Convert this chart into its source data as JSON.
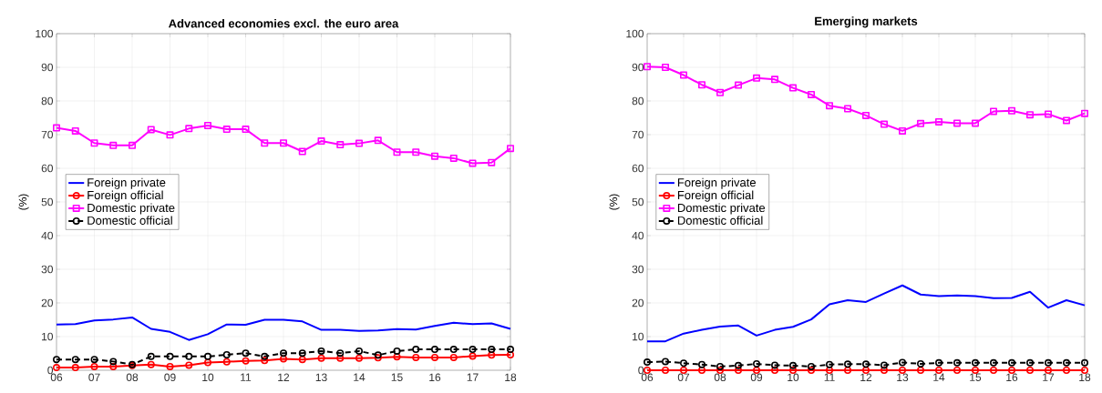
{
  "chart_data": [
    {
      "type": "line",
      "title": "Advanced economies excl. the euro area",
      "ylabel": "(%)",
      "x": [
        6,
        6.5,
        7,
        7.5,
        8,
        8.5,
        9,
        9.5,
        10,
        10.5,
        11,
        11.5,
        12,
        12.5,
        13,
        13.5,
        14,
        14.5,
        15,
        15.5,
        16,
        16.5,
        17,
        17.5,
        18
      ],
      "xlim": [
        6,
        18
      ],
      "ylim": [
        0,
        100
      ],
      "xticks": [
        {
          "value": 6,
          "label": "06"
        },
        {
          "value": 7,
          "label": "07"
        },
        {
          "value": 8,
          "label": "08"
        },
        {
          "value": 9,
          "label": "09"
        },
        {
          "value": 10,
          "label": "10"
        },
        {
          "value": 11,
          "label": "11"
        },
        {
          "value": 12,
          "label": "12"
        },
        {
          "value": 13,
          "label": "13"
        },
        {
          "value": 14,
          "label": "14"
        },
        {
          "value": 15,
          "label": "15"
        },
        {
          "value": 16,
          "label": "16"
        },
        {
          "value": 17,
          "label": "17"
        },
        {
          "value": 18,
          "label": "18"
        }
      ],
      "yticks": [
        0,
        10,
        20,
        30,
        40,
        50,
        60,
        70,
        80,
        90,
        100
      ],
      "grid": true,
      "legend": "left",
      "series": [
        {
          "name": "Foreign private",
          "color": "#0000ff",
          "marker": "none",
          "line_style": "solid",
          "values": [
            13.6,
            13.7,
            14.8,
            15.1,
            15.7,
            12.3,
            11.4,
            9,
            10.7,
            13.6,
            13.5,
            15,
            15,
            14.5,
            12,
            12,
            11.7,
            11.8,
            12.2,
            12.1,
            13.2,
            14.1,
            13.7,
            13.9,
            12.3
          ]
        },
        {
          "name": "Foreign official",
          "color": "#ff0000",
          "marker": "circle",
          "line_style": "solid",
          "values": [
            0.8,
            0.8,
            1.1,
            1.1,
            1.4,
            1.7,
            1.1,
            1.5,
            2.3,
            2.5,
            2.8,
            2.9,
            3.4,
            3.2,
            3.6,
            3.6,
            3.6,
            3.7,
            4,
            3.8,
            3.8,
            3.8,
            4.2,
            4.5,
            4.6
          ]
        },
        {
          "name": "Domestic private",
          "color": "#ff00ff",
          "marker": "square",
          "line_style": "solid",
          "values": [
            72,
            71.1,
            67.5,
            66.8,
            66.8,
            71.5,
            69.9,
            71.8,
            72.7,
            71.6,
            71.6,
            67.5,
            67.5,
            65,
            68.1,
            67,
            67.4,
            68.3,
            64.8,
            64.8,
            63.6,
            63,
            61.5,
            61.7,
            65.9
          ]
        },
        {
          "name": "Domestic official",
          "color": "#000000",
          "marker": "circle",
          "line_style": "dashed",
          "values": [
            3.2,
            3.2,
            3.2,
            2.6,
            1.7,
            4.1,
            4.1,
            4.1,
            4.1,
            4.6,
            5.1,
            4.1,
            5.1,
            5.1,
            5.7,
            5.1,
            5.7,
            4.5,
            5.7,
            6.2,
            6.2,
            6.2,
            6.2,
            6.2,
            6.2
          ]
        }
      ]
    },
    {
      "type": "line",
      "title": "Emerging markets",
      "ylabel": "(%)",
      "x": [
        6,
        6.5,
        7,
        7.5,
        8,
        8.5,
        9,
        9.5,
        10,
        10.5,
        11,
        11.5,
        12,
        12.5,
        13,
        13.5,
        14,
        14.5,
        15,
        15.5,
        16,
        16.5,
        17,
        17.5,
        18
      ],
      "xlim": [
        6,
        18
      ],
      "ylim": [
        0,
        100
      ],
      "xticks": [
        {
          "value": 6,
          "label": "06"
        },
        {
          "value": 7,
          "label": "07"
        },
        {
          "value": 8,
          "label": "08"
        },
        {
          "value": 9,
          "label": "09"
        },
        {
          "value": 10,
          "label": "10"
        },
        {
          "value": 11,
          "label": "11"
        },
        {
          "value": 12,
          "label": "12"
        },
        {
          "value": 13,
          "label": "13"
        },
        {
          "value": 14,
          "label": "14"
        },
        {
          "value": 15,
          "label": "15"
        },
        {
          "value": 16,
          "label": "16"
        },
        {
          "value": 17,
          "label": "17"
        },
        {
          "value": 18,
          "label": "18"
        }
      ],
      "yticks": [
        0,
        10,
        20,
        30,
        40,
        50,
        60,
        70,
        80,
        90,
        100
      ],
      "grid": true,
      "legend": "left",
      "series": [
        {
          "name": "Foreign private",
          "color": "#0000ff",
          "marker": "none",
          "line_style": "solid",
          "values": [
            8.6,
            8.6,
            10.9,
            12,
            13,
            13.3,
            10.3,
            12,
            12.9,
            15.1,
            19.6,
            20.8,
            20.3,
            22.8,
            25.2,
            22.5,
            22,
            22.2,
            22,
            21.4,
            21.5,
            23.3,
            18.6,
            20.8,
            19.3
          ]
        },
        {
          "name": "Foreign official",
          "color": "#ff0000",
          "marker": "circle",
          "line_style": "solid",
          "values": [
            0,
            0,
            0,
            0,
            0,
            0,
            0,
            0,
            0,
            0,
            0,
            0,
            0,
            0,
            0,
            0,
            0,
            0,
            0,
            0,
            0,
            0,
            0,
            0,
            0
          ]
        },
        {
          "name": "Domestic private",
          "color": "#ff00ff",
          "marker": "square",
          "line_style": "solid",
          "values": [
            90.2,
            90,
            87.7,
            84.8,
            82.5,
            84.7,
            86.8,
            86.4,
            83.9,
            81.9,
            78.6,
            77.7,
            75.7,
            73.1,
            71.1,
            73.3,
            73.8,
            73.4,
            73.4,
            76.9,
            77.1,
            75.9,
            76.1,
            74.2,
            76.3
          ]
        },
        {
          "name": "Domestic official",
          "color": "#000000",
          "marker": "circle",
          "line_style": "dashed",
          "values": [
            2.4,
            2.6,
            2.1,
            1.7,
            1.1,
            1.4,
            1.9,
            1.5,
            1.4,
            1.1,
            1.7,
            1.8,
            1.8,
            1.5,
            2.3,
            1.9,
            2.2,
            2.2,
            2.2,
            2.2,
            2.2,
            2.2,
            2.2,
            2.2,
            2.2
          ]
        }
      ]
    }
  ]
}
